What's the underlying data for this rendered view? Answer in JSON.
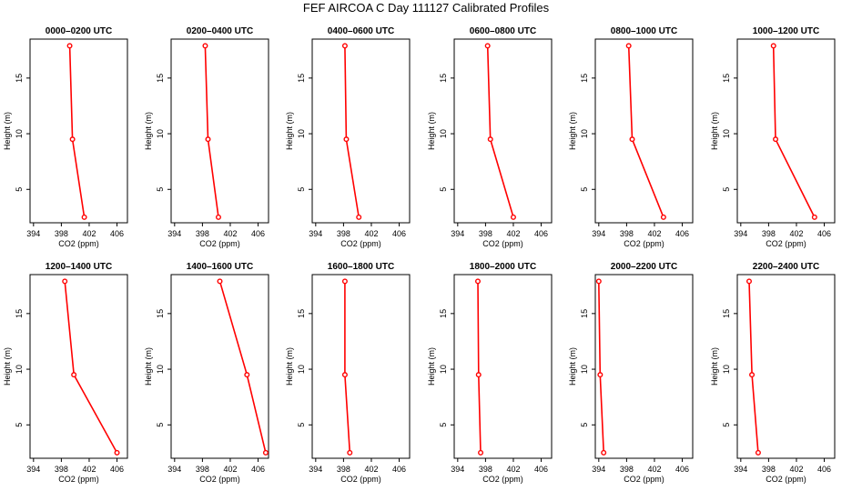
{
  "page_title": "FEF AIRCOA C  Day 111127  Calibrated Profiles",
  "chart_data": [
    {
      "type": "line",
      "title": "0000–0200 UTC",
      "xlabel": "CO2 (ppm)",
      "ylabel": "Height (m)",
      "x_ticks": [
        394,
        398,
        402,
        406
      ],
      "y_ticks": [
        5,
        10,
        15
      ],
      "xlim": [
        393.5,
        407.5
      ],
      "ylim": [
        2,
        18.5
      ],
      "grid": false,
      "series": [
        {
          "points": [
            {
              "x": 401.3,
              "y": 2.5
            },
            {
              "x": 399.6,
              "y": 9.5
            },
            {
              "x": 399.2,
              "y": 17.9
            }
          ],
          "color": "#ff0000"
        }
      ]
    },
    {
      "type": "line",
      "title": "0200–0400 UTC",
      "xlabel": "CO2 (ppm)",
      "ylabel": "Height (m)",
      "x_ticks": [
        394,
        398,
        402,
        406
      ],
      "y_ticks": [
        5,
        10,
        15
      ],
      "xlim": [
        393.5,
        407.5
      ],
      "ylim": [
        2,
        18.5
      ],
      "grid": false,
      "series": [
        {
          "points": [
            {
              "x": 400.3,
              "y": 2.5
            },
            {
              "x": 398.8,
              "y": 9.5
            },
            {
              "x": 398.4,
              "y": 17.9
            }
          ],
          "color": "#ff0000"
        }
      ]
    },
    {
      "type": "line",
      "title": "0400–0600 UTC",
      "xlabel": "CO2 (ppm)",
      "ylabel": "Height (m)",
      "x_ticks": [
        394,
        398,
        402,
        406
      ],
      "y_ticks": [
        5,
        10,
        15
      ],
      "xlim": [
        393.5,
        407.5
      ],
      "ylim": [
        2,
        18.5
      ],
      "grid": false,
      "series": [
        {
          "points": [
            {
              "x": 400.2,
              "y": 2.5
            },
            {
              "x": 398.4,
              "y": 9.5
            },
            {
              "x": 398.2,
              "y": 17.9
            }
          ],
          "color": "#ff0000"
        }
      ]
    },
    {
      "type": "line",
      "title": "0600–0800 UTC",
      "xlabel": "CO2 (ppm)",
      "ylabel": "Height (m)",
      "x_ticks": [
        394,
        398,
        402,
        406
      ],
      "y_ticks": [
        5,
        10,
        15
      ],
      "xlim": [
        393.5,
        407.5
      ],
      "ylim": [
        2,
        18.5
      ],
      "grid": false,
      "series": [
        {
          "points": [
            {
              "x": 402.0,
              "y": 2.5
            },
            {
              "x": 398.7,
              "y": 9.5
            },
            {
              "x": 398.3,
              "y": 17.9
            }
          ],
          "color": "#ff0000"
        }
      ]
    },
    {
      "type": "line",
      "title": "0800–1000 UTC",
      "xlabel": "CO2 (ppm)",
      "ylabel": "Height (m)",
      "x_ticks": [
        394,
        398,
        402,
        406
      ],
      "y_ticks": [
        5,
        10,
        15
      ],
      "xlim": [
        393.5,
        407.5
      ],
      "ylim": [
        2,
        18.5
      ],
      "grid": false,
      "series": [
        {
          "points": [
            {
              "x": 403.3,
              "y": 2.5
            },
            {
              "x": 398.8,
              "y": 9.5
            },
            {
              "x": 398.3,
              "y": 17.9
            }
          ],
          "color": "#ff0000"
        }
      ]
    },
    {
      "type": "line",
      "title": "1000–1200 UTC",
      "xlabel": "CO2 (ppm)",
      "ylabel": "Height (m)",
      "x_ticks": [
        394,
        398,
        402,
        406
      ],
      "y_ticks": [
        5,
        10,
        15
      ],
      "xlim": [
        393.5,
        407.5
      ],
      "ylim": [
        2,
        18.5
      ],
      "grid": false,
      "series": [
        {
          "points": [
            {
              "x": 404.6,
              "y": 2.5
            },
            {
              "x": 399.0,
              "y": 9.5
            },
            {
              "x": 398.7,
              "y": 17.9
            }
          ],
          "color": "#ff0000"
        }
      ]
    },
    {
      "type": "line",
      "title": "1200–1400 UTC",
      "xlabel": "CO2 (ppm)",
      "ylabel": "Height (m)",
      "x_ticks": [
        394,
        398,
        402,
        406
      ],
      "y_ticks": [
        5,
        10,
        15
      ],
      "xlim": [
        393.5,
        407.5
      ],
      "ylim": [
        2,
        18.5
      ],
      "grid": false,
      "series": [
        {
          "points": [
            {
              "x": 406.0,
              "y": 2.5
            },
            {
              "x": 399.8,
              "y": 9.5
            },
            {
              "x": 398.5,
              "y": 17.9
            }
          ],
          "color": "#ff0000"
        }
      ]
    },
    {
      "type": "line",
      "title": "1400–1600 UTC",
      "xlabel": "CO2 (ppm)",
      "ylabel": "Height (m)",
      "x_ticks": [
        394,
        398,
        402,
        406
      ],
      "y_ticks": [
        5,
        10,
        15
      ],
      "xlim": [
        393.5,
        407.5
      ],
      "ylim": [
        2,
        18.5
      ],
      "grid": false,
      "series": [
        {
          "points": [
            {
              "x": 407.1,
              "y": 2.5
            },
            {
              "x": 404.4,
              "y": 9.5
            },
            {
              "x": 400.5,
              "y": 17.9
            }
          ],
          "color": "#ff0000"
        }
      ]
    },
    {
      "type": "line",
      "title": "1600–1800 UTC",
      "xlabel": "CO2 (ppm)",
      "ylabel": "Height (m)",
      "x_ticks": [
        394,
        398,
        402,
        406
      ],
      "y_ticks": [
        5,
        10,
        15
      ],
      "xlim": [
        393.5,
        407.5
      ],
      "ylim": [
        2,
        18.5
      ],
      "grid": false,
      "series": [
        {
          "points": [
            {
              "x": 398.9,
              "y": 2.5
            },
            {
              "x": 398.2,
              "y": 9.5
            },
            {
              "x": 398.2,
              "y": 17.9
            }
          ],
          "color": "#ff0000"
        }
      ]
    },
    {
      "type": "line",
      "title": "1800–2000 UTC",
      "xlabel": "CO2 (ppm)",
      "ylabel": "Height (m)",
      "x_ticks": [
        394,
        398,
        402,
        406
      ],
      "y_ticks": [
        5,
        10,
        15
      ],
      "xlim": [
        393.5,
        407.5
      ],
      "ylim": [
        2,
        18.5
      ],
      "grid": false,
      "series": [
        {
          "points": [
            {
              "x": 397.3,
              "y": 2.5
            },
            {
              "x": 397.0,
              "y": 9.5
            },
            {
              "x": 396.9,
              "y": 17.9
            }
          ],
          "color": "#ff0000"
        }
      ]
    },
    {
      "type": "line",
      "title": "2000–2200 UTC",
      "xlabel": "CO2 (ppm)",
      "ylabel": "Height (m)",
      "x_ticks": [
        394,
        398,
        402,
        406
      ],
      "y_ticks": [
        5,
        10,
        15
      ],
      "xlim": [
        393.5,
        407.5
      ],
      "ylim": [
        2,
        18.5
      ],
      "grid": false,
      "series": [
        {
          "points": [
            {
              "x": 394.7,
              "y": 2.5
            },
            {
              "x": 394.2,
              "y": 9.5
            },
            {
              "x": 394.0,
              "y": 17.9
            }
          ],
          "color": "#ff0000"
        }
      ]
    },
    {
      "type": "line",
      "title": "2200–2400 UTC",
      "xlabel": "CO2 (ppm)",
      "ylabel": "Height (m)",
      "x_ticks": [
        394,
        398,
        402,
        406
      ],
      "y_ticks": [
        5,
        10,
        15
      ],
      "xlim": [
        393.5,
        407.5
      ],
      "ylim": [
        2,
        18.5
      ],
      "grid": false,
      "series": [
        {
          "points": [
            {
              "x": 396.5,
              "y": 2.5
            },
            {
              "x": 395.6,
              "y": 9.5
            },
            {
              "x": 395.2,
              "y": 17.9
            }
          ],
          "color": "#ff0000"
        }
      ]
    }
  ]
}
